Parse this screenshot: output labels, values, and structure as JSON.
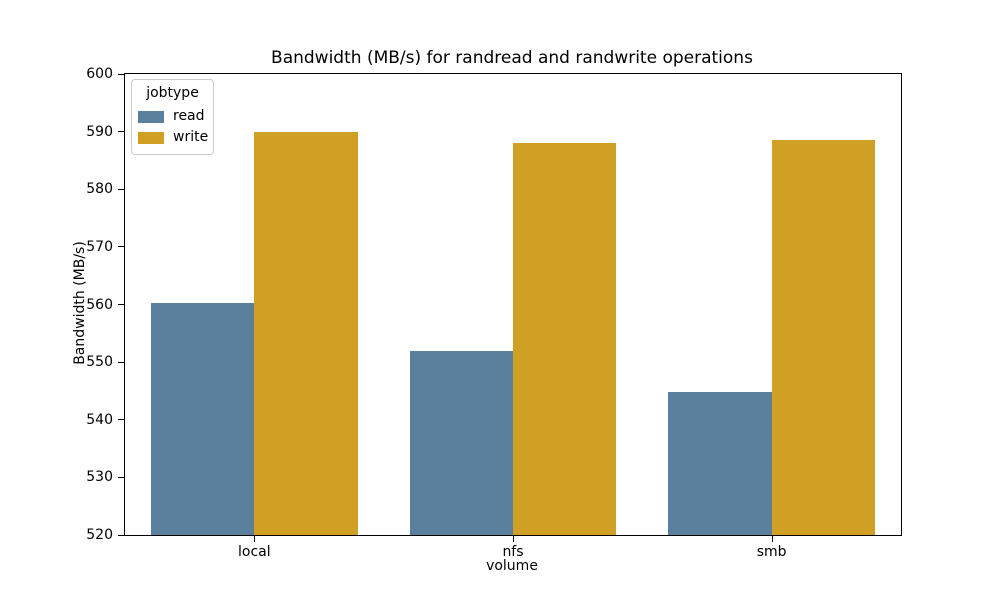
{
  "chart_data": {
    "type": "bar",
    "title": "Bandwidth (MB/s) for randread and randwrite operations",
    "xlabel": "volume",
    "ylabel": "Bandwidth (MB/s)",
    "categories": [
      "local",
      "nfs",
      "smb"
    ],
    "series": [
      {
        "name": "read",
        "color": "#5a809e",
        "values": [
          560.3,
          552.0,
          544.8
        ]
      },
      {
        "name": "write",
        "color": "#cfa023",
        "values": [
          590.0,
          588.0,
          588.5
        ]
      }
    ],
    "ylim": [
      520,
      600
    ],
    "ytick_step": 10,
    "yticks": [
      520,
      530,
      540,
      550,
      560,
      570,
      580,
      590,
      600
    ],
    "grid": false,
    "legend_title": "jobtype",
    "legend_position": "upper left",
    "bar_group_width_fraction": 0.8
  }
}
